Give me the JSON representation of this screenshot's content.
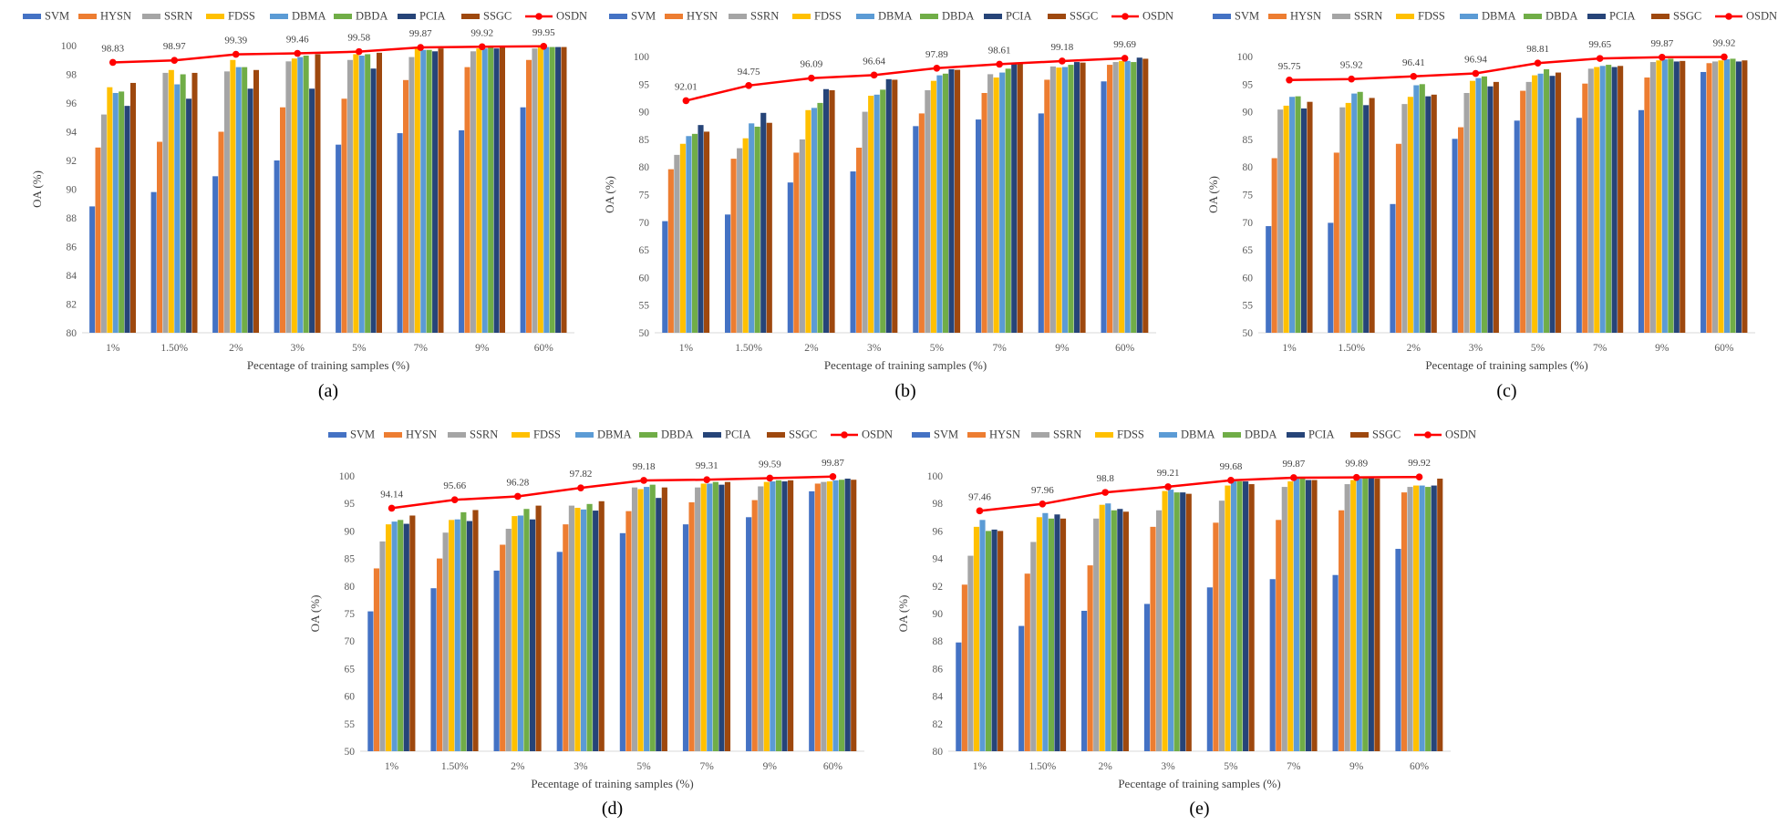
{
  "series_colors": [
    "#4472C4",
    "#ED7D31",
    "#A5A5A5",
    "#FFC000",
    "#5B9BD5",
    "#70AD47",
    "#264478",
    "#9E480E"
  ],
  "line_color": "#FF0000",
  "chart_data": [
    {
      "type": "bar",
      "panel": "(a)",
      "categories": [
        "1%",
        "1.50%",
        "2%",
        "3%",
        "5%",
        "7%",
        "9%",
        "60%"
      ],
      "xlabel": "Pecentage of training samples (%)",
      "ylabel": "OA (%)",
      "ylim": [
        80,
        100
      ],
      "ystep": 2,
      "legend": "top",
      "series": [
        {
          "name": "SVM",
          "values": [
            88.8,
            89.8,
            90.9,
            92.0,
            93.1,
            93.9,
            94.1,
            95.7
          ]
        },
        {
          "name": "HYSN",
          "values": [
            92.9,
            93.3,
            94.0,
            95.7,
            96.3,
            97.6,
            98.5,
            99.0
          ]
        },
        {
          "name": "SSRN",
          "values": [
            95.2,
            98.1,
            98.2,
            98.9,
            99.0,
            99.2,
            99.6,
            99.8
          ]
        },
        {
          "name": "FDSS",
          "values": [
            97.1,
            98.3,
            99.0,
            99.1,
            99.4,
            99.8,
            99.8,
            99.9
          ]
        },
        {
          "name": "DBMA",
          "values": [
            96.7,
            97.3,
            98.5,
            99.2,
            99.3,
            99.7,
            99.8,
            99.9
          ]
        },
        {
          "name": "DBDA",
          "values": [
            96.8,
            98.0,
            98.5,
            99.3,
            99.4,
            99.7,
            99.9,
            99.9
          ]
        },
        {
          "name": "PCIA",
          "values": [
            95.8,
            96.3,
            97.0,
            97.0,
            98.4,
            99.6,
            99.8,
            99.9
          ]
        },
        {
          "name": "SSGC",
          "values": [
            97.4,
            98.1,
            98.3,
            99.4,
            99.5,
            99.8,
            99.9,
            99.9
          ]
        }
      ],
      "line": {
        "name": "OSDN",
        "values": [
          98.83,
          98.97,
          99.39,
          99.46,
          99.58,
          99.87,
          99.92,
          99.95
        ],
        "labels": [
          "98.83",
          "98.97",
          "99.39",
          "99.46",
          "99.58",
          "99.87",
          "99.92",
          "99.95"
        ]
      }
    },
    {
      "type": "bar",
      "panel": "(b)",
      "categories": [
        "1%",
        "1.50%",
        "2%",
        "3%",
        "5%",
        "7%",
        "9%",
        "60%"
      ],
      "xlabel": "Pecentage of training samples (%)",
      "ylabel": "OA (%)",
      "ylim": [
        50,
        100
      ],
      "ystep": 5,
      "legend": "top",
      "series": [
        {
          "name": "SVM",
          "values": [
            70.2,
            71.4,
            77.2,
            79.2,
            87.4,
            88.6,
            89.7,
            95.5
          ]
        },
        {
          "name": "HYSN",
          "values": [
            79.6,
            81.5,
            82.6,
            83.5,
            89.7,
            93.4,
            95.8,
            98.5
          ]
        },
        {
          "name": "SSRN",
          "values": [
            82.2,
            83.4,
            85.0,
            90.0,
            93.9,
            96.8,
            98.2,
            99.0
          ]
        },
        {
          "name": "FDSS",
          "values": [
            84.2,
            85.2,
            90.3,
            92.9,
            95.6,
            96.2,
            98.0,
            99.2
          ]
        },
        {
          "name": "DBMA",
          "values": [
            85.6,
            87.9,
            90.7,
            93.1,
            96.6,
            97.1,
            98.1,
            99.2
          ]
        },
        {
          "name": "DBDA",
          "values": [
            86.0,
            87.3,
            91.6,
            94.0,
            96.9,
            97.8,
            98.5,
            99.0
          ]
        },
        {
          "name": "PCIA",
          "values": [
            87.6,
            89.8,
            94.1,
            95.9,
            97.7,
            98.6,
            99.0,
            99.8
          ]
        },
        {
          "name": "SSGC",
          "values": [
            86.4,
            88.0,
            93.9,
            95.8,
            97.6,
            98.7,
            98.9,
            99.6
          ]
        }
      ],
      "line": {
        "name": "OSDN",
        "values": [
          92.01,
          94.75,
          96.09,
          96.64,
          97.89,
          98.61,
          99.18,
          99.69
        ],
        "labels": [
          "92.01",
          "94.75",
          "96.09",
          "96.64",
          "97.89",
          "98.61",
          "99.18",
          "99.69"
        ]
      }
    },
    {
      "type": "bar",
      "panel": "(c)",
      "categories": [
        "1%",
        "1.50%",
        "2%",
        "3%",
        "5%",
        "7%",
        "9%",
        "60%"
      ],
      "xlabel": "Pecentage of training samples (%)",
      "ylabel": "OA (%)",
      "ylim": [
        50,
        100
      ],
      "ystep": 5,
      "legend": "top",
      "series": [
        {
          "name": "SVM",
          "values": [
            69.3,
            69.9,
            73.3,
            85.1,
            88.4,
            88.9,
            90.3,
            97.2
          ]
        },
        {
          "name": "HYSN",
          "values": [
            81.6,
            82.6,
            84.2,
            87.2,
            93.8,
            95.1,
            96.2,
            98.8
          ]
        },
        {
          "name": "SSRN",
          "values": [
            90.4,
            90.8,
            91.4,
            93.4,
            95.4,
            97.8,
            99.0,
            99.1
          ]
        },
        {
          "name": "FDSS",
          "values": [
            91.1,
            91.6,
            92.7,
            95.6,
            96.6,
            98.1,
            99.3,
            99.3
          ]
        },
        {
          "name": "DBMA",
          "values": [
            92.7,
            93.3,
            94.8,
            96.1,
            96.9,
            98.3,
            99.5,
            99.5
          ]
        },
        {
          "name": "DBDA",
          "values": [
            92.8,
            93.6,
            95.0,
            96.4,
            97.7,
            98.5,
            99.6,
            99.6
          ]
        },
        {
          "name": "PCIA",
          "values": [
            90.6,
            91.2,
            92.8,
            94.6,
            96.5,
            98.1,
            99.1,
            99.1
          ]
        },
        {
          "name": "SSGC",
          "values": [
            91.8,
            92.5,
            93.1,
            95.4,
            97.1,
            98.3,
            99.2,
            99.3
          ]
        }
      ],
      "line": {
        "name": "OSDN",
        "values": [
          95.75,
          95.92,
          96.41,
          96.94,
          98.81,
          99.65,
          99.87,
          99.92
        ],
        "labels": [
          "95.75",
          "95.92",
          "96.41",
          "96.94",
          "98.81",
          "99.65",
          "99.87",
          "99.92"
        ]
      }
    },
    {
      "type": "bar",
      "panel": "(d)",
      "categories": [
        "1%",
        "1.50%",
        "2%",
        "3%",
        "5%",
        "7%",
        "9%",
        "60%"
      ],
      "xlabel": "Pecentage of training samples (%)",
      "ylabel": "OA (%)",
      "ylim": [
        50,
        100
      ],
      "ystep": 5,
      "legend": "top",
      "series": [
        {
          "name": "SVM",
          "values": [
            75.4,
            79.6,
            82.8,
            86.2,
            89.6,
            91.2,
            92.5,
            97.2
          ]
        },
        {
          "name": "HYSN",
          "values": [
            83.2,
            85.0,
            87.5,
            91.2,
            93.6,
            95.2,
            95.6,
            98.6
          ]
        },
        {
          "name": "SSRN",
          "values": [
            88.1,
            89.7,
            90.4,
            94.6,
            97.9,
            97.9,
            98.1,
            98.9
          ]
        },
        {
          "name": "FDSS",
          "values": [
            91.2,
            92.0,
            92.7,
            94.2,
            97.6,
            98.6,
            98.9,
            99.0
          ]
        },
        {
          "name": "DBMA",
          "values": [
            91.7,
            92.1,
            92.8,
            93.9,
            98.0,
            98.6,
            99.0,
            99.2
          ]
        },
        {
          "name": "DBDA",
          "values": [
            92.0,
            93.4,
            94.0,
            94.9,
            98.4,
            98.9,
            99.2,
            99.3
          ]
        },
        {
          "name": "PCIA",
          "values": [
            91.3,
            91.8,
            92.1,
            93.7,
            96.0,
            98.4,
            99.0,
            99.5
          ]
        },
        {
          "name": "SSGC",
          "values": [
            92.8,
            93.8,
            94.6,
            95.4,
            97.9,
            98.9,
            99.2,
            99.3
          ]
        }
      ],
      "line": {
        "name": "OSDN",
        "values": [
          94.14,
          95.66,
          96.28,
          97.82,
          99.18,
          99.31,
          99.59,
          99.87
        ],
        "labels": [
          "94.14",
          "95.66",
          "96.28",
          "97.82",
          "99.18",
          "99.31",
          "99.59",
          "99.87"
        ]
      }
    },
    {
      "type": "bar",
      "panel": "(e)",
      "categories": [
        "1%",
        "1.50%",
        "2%",
        "3%",
        "5%",
        "7%",
        "9%",
        "60%"
      ],
      "xlabel": "Pecentage of training samples (%)",
      "ylabel": "OA (%)",
      "ylim": [
        80,
        100
      ],
      "ystep": 2,
      "legend": "top",
      "series": [
        {
          "name": "SVM",
          "values": [
            87.9,
            89.1,
            90.2,
            90.7,
            91.9,
            92.5,
            92.8,
            94.7
          ]
        },
        {
          "name": "HYSN",
          "values": [
            92.1,
            92.9,
            93.5,
            96.3,
            96.6,
            96.8,
            97.5,
            98.8
          ]
        },
        {
          "name": "SSRN",
          "values": [
            94.2,
            95.2,
            96.9,
            97.5,
            98.2,
            99.2,
            99.4,
            99.2
          ]
        },
        {
          "name": "FDSS",
          "values": [
            96.3,
            97.0,
            97.9,
            98.9,
            99.3,
            99.6,
            99.7,
            99.3
          ]
        },
        {
          "name": "DBMA",
          "values": [
            96.8,
            97.3,
            98.0,
            99.0,
            99.6,
            99.8,
            99.8,
            99.3
          ]
        },
        {
          "name": "DBDA",
          "values": [
            96.0,
            96.9,
            97.5,
            98.8,
            99.6,
            99.8,
            99.9,
            99.2
          ]
        },
        {
          "name": "PCIA",
          "values": [
            96.1,
            97.2,
            97.6,
            98.8,
            99.6,
            99.7,
            99.9,
            99.3
          ]
        },
        {
          "name": "SSGC",
          "values": [
            96.0,
            96.9,
            97.4,
            98.7,
            99.4,
            99.7,
            99.8,
            99.8
          ]
        }
      ],
      "line": {
        "name": "OSDN",
        "values": [
          97.46,
          97.96,
          98.8,
          99.21,
          99.68,
          99.87,
          99.89,
          99.92
        ],
        "labels": [
          "97.46",
          "97.96",
          "98.8",
          "99.21",
          "99.68",
          "99.87",
          "99.89",
          "99.92"
        ]
      }
    }
  ]
}
